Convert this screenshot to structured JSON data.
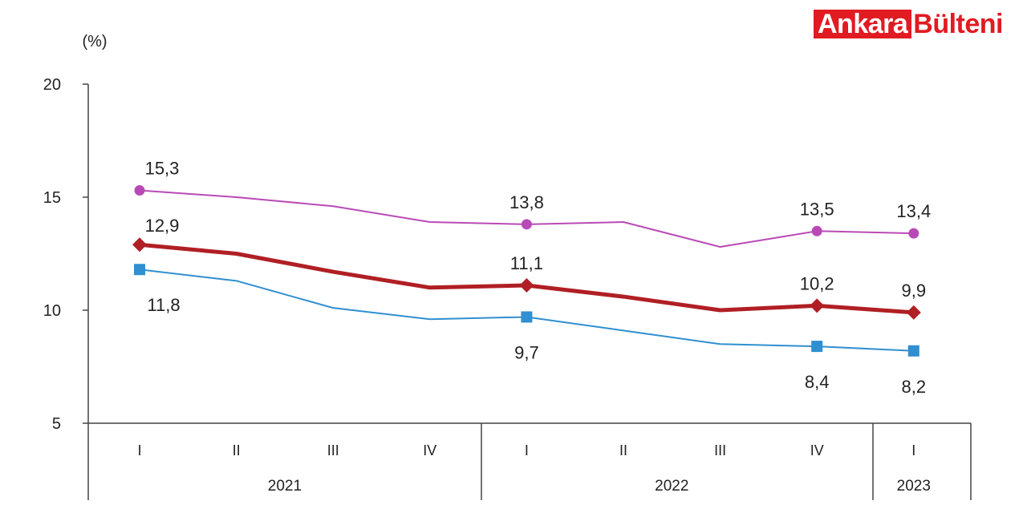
{
  "brand": {
    "part1": "Ankara",
    "part2": "Bülteni",
    "color": "#e11b22"
  },
  "chart_data": {
    "type": "line",
    "title": "",
    "ylabel": "(%)",
    "xlabel": "",
    "ylim": [
      5,
      20
    ],
    "yticks": [
      5,
      10,
      15,
      20
    ],
    "categories": [
      "I",
      "II",
      "III",
      "IV",
      "I",
      "II",
      "III",
      "IV",
      "I"
    ],
    "years": [
      {
        "label": "2021",
        "quarters": 4
      },
      {
        "label": "2022",
        "quarters": 4
      },
      {
        "label": "2023",
        "quarters": 1
      }
    ],
    "grid": false,
    "series": [
      {
        "color": "#b94ab5",
        "marker": "circle",
        "values": [
          15.3,
          15.0,
          14.6,
          13.9,
          13.8,
          13.9,
          12.8,
          13.5,
          13.4
        ],
        "labels": [
          "15,3",
          "",
          "",
          "",
          "13,8",
          "",
          "",
          "13,5",
          "13,4"
        ]
      },
      {
        "color": "#b01f24",
        "marker": "diamond",
        "values": [
          12.9,
          12.5,
          11.7,
          11.0,
          11.1,
          10.6,
          10.0,
          10.2,
          9.9
        ],
        "labels": [
          "12,9",
          "",
          "",
          "",
          "11,1",
          "",
          "",
          "10,2",
          "9,9"
        ]
      },
      {
        "color": "#2f8fd0",
        "marker": "square",
        "values": [
          11.8,
          11.3,
          10.1,
          9.6,
          9.7,
          9.1,
          8.5,
          8.4,
          8.2
        ],
        "labels": [
          "11,8",
          "",
          "",
          "",
          "9,7",
          "",
          "",
          "8,4",
          "8,2"
        ]
      }
    ]
  }
}
